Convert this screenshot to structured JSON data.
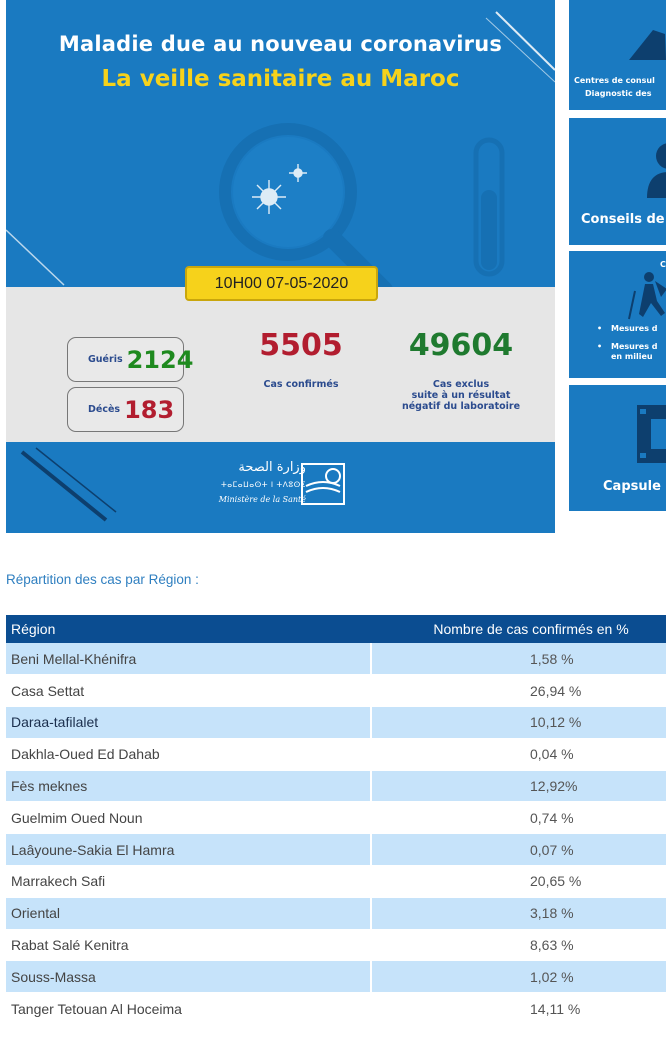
{
  "hero": {
    "title_line1": "Maladie due au nouveau coronavirus",
    "title_line2": "La veille sanitaire au Maroc",
    "date_badge": "10H00  07-05-2020",
    "gueris_label": "Guéris",
    "gueris_value": "2124",
    "deces_label": "Décès",
    "deces_value": "183",
    "confirmed_value": "5505",
    "confirmed_label": "Cas confirmés",
    "excluded_value": "49604",
    "excluded_label_line1": "Cas exclus",
    "excluded_label_line2": "suite à un résultat",
    "excluded_label_line3": "négatif du laboratoire",
    "ministry_ar": "وزارة الصحة",
    "ministry_tf": "ⵜⴰⵎⴰⵡⴰⵙⵜ ⵏ ⵜⴷⵓⵙⵉ",
    "ministry_fr": "Ministère de la Santé"
  },
  "side_cards": {
    "card1_line1": "Centres de consul",
    "card1_line2": "Diagnostic des",
    "card2_label": "Conseils de",
    "card3_head": "C",
    "card3_item1": "Mesures d",
    "card3_item2_line1": "Mesures d",
    "card3_item2_line2": "en milieu",
    "card4_label": "Capsule"
  },
  "section_title": "Répartition des cas par Région :",
  "table": {
    "headers": {
      "region": "Région",
      "percent": "Nombre de cas confirmés en %"
    },
    "rows": [
      {
        "region": "Beni Mellal-Khénifra",
        "percent": "1,58 %"
      },
      {
        "region": "Casa Settat",
        "percent": "26,94 %"
      },
      {
        "region": "Daraa-tafilalet",
        "percent": "10,12 %"
      },
      {
        "region": "Dakhla-Oued Ed Dahab",
        "percent": "0,04 %"
      },
      {
        "region": "Fès meknes",
        "percent": "12,92%"
      },
      {
        "region": "Guelmim Oued Noun",
        "percent": "0,74 %"
      },
      {
        "region": "Laâyoune-Sakia El Hamra",
        "percent": "0,07 %"
      },
      {
        "region": "Marrakech Safi",
        "percent": "20,65 %"
      },
      {
        "region": "Oriental",
        "percent": "3,18 %"
      },
      {
        "region": "Rabat Salé Kenitra",
        "percent": "8,63 %"
      },
      {
        "region": "Souss-Massa",
        "percent": "1,02 %"
      },
      {
        "region": "Tanger Tetouan Al Hoceima",
        "percent": "14,11 %"
      }
    ]
  },
  "colors": {
    "hero_blue": "#1a7ac1",
    "title_yellow": "#f6d21b",
    "table_header": "#0b4d91",
    "row_alt": "#c6e3fa",
    "confirmed_red": "#b21d2f",
    "recovered_green": "#1f8a1f"
  }
}
